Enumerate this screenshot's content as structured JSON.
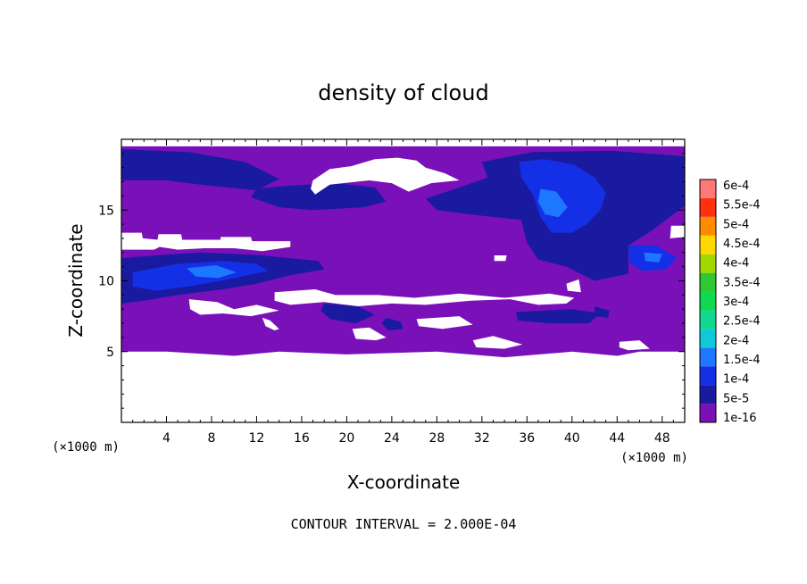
{
  "chart_data": {
    "type": "heatmap",
    "title": "density of cloud",
    "xlabel": "X-coordinate",
    "ylabel": "Z-coordinate",
    "x_unit": "(×1000 m)",
    "y_unit": "(×1000 m)",
    "xlim": [
      0,
      50
    ],
    "ylim": [
      0,
      20
    ],
    "xticks": [
      4,
      8,
      12,
      16,
      20,
      24,
      28,
      32,
      36,
      40,
      44,
      48
    ],
    "yticks": [
      5,
      10,
      15
    ],
    "footer": "CONTOUR INTERVAL = 2.000E-04",
    "colorbar": {
      "levels": [
        {
          "label": "1e-16",
          "value": 1e-16,
          "color": "#7a10b8"
        },
        {
          "label": "5e-5",
          "value": 5e-05,
          "color": "#1a1aa0"
        },
        {
          "label": "1e-4",
          "value": 0.0001,
          "color": "#1430e6"
        },
        {
          "label": "1.5e-4",
          "value": 0.00015,
          "color": "#1e78ff"
        },
        {
          "label": "2e-4",
          "value": 0.0002,
          "color": "#10c8d8"
        },
        {
          "label": "2.5e-4",
          "value": 0.00025,
          "color": "#10d890"
        },
        {
          "label": "3e-4",
          "value": 0.0003,
          "color": "#10d850"
        },
        {
          "label": "3.5e-4",
          "value": 0.00035,
          "color": "#30c830"
        },
        {
          "label": "4e-4",
          "value": 0.0004,
          "color": "#a0d800"
        },
        {
          "label": "4.5e-4",
          "value": 0.00045,
          "color": "#ffd800"
        },
        {
          "label": "5e-4",
          "value": 0.0005,
          "color": "#ff8c00"
        },
        {
          "label": "5.5e-4",
          "value": 0.00055,
          "color": "#ff3010"
        },
        {
          "label": "6e-4",
          "value": 0.0006,
          "color": "#ff7878"
        }
      ]
    },
    "regions": [
      {
        "level": 0,
        "points": [
          [
            0,
            19.5
          ],
          [
            50,
            19.5
          ],
          [
            50,
            5
          ],
          [
            46,
            5
          ],
          [
            44,
            4.7
          ],
          [
            40,
            5
          ],
          [
            34,
            4.6
          ],
          [
            28,
            5
          ],
          [
            20,
            4.8
          ],
          [
            14,
            5
          ],
          [
            10,
            4.7
          ],
          [
            4,
            5
          ],
          [
            0,
            5
          ]
        ]
      },
      {
        "level": 1,
        "points": [
          [
            0,
            19.3
          ],
          [
            6,
            19.1
          ],
          [
            11,
            18.4
          ],
          [
            14,
            17.2
          ],
          [
            12,
            16.4
          ],
          [
            8,
            16.7
          ],
          [
            4,
            17.1
          ],
          [
            0,
            17.1
          ]
        ]
      },
      {
        "level": 1,
        "points": [
          [
            11.5,
            15.9
          ],
          [
            14,
            15.2
          ],
          [
            17,
            15
          ],
          [
            21.5,
            15.2
          ],
          [
            23.5,
            15.6
          ],
          [
            22.5,
            16.6
          ],
          [
            19,
            16.9
          ],
          [
            14.5,
            16.7
          ],
          [
            12,
            16.5
          ]
        ]
      },
      {
        "level": 1,
        "points": [
          [
            32,
            18.4
          ],
          [
            36.5,
            19.1
          ],
          [
            43.5,
            19.2
          ],
          [
            50,
            18.8
          ],
          [
            50,
            15.3
          ],
          [
            47,
            13.5
          ],
          [
            45,
            12.5
          ],
          [
            45,
            10.5
          ],
          [
            42,
            10
          ],
          [
            39.5,
            11
          ],
          [
            37,
            11.5
          ],
          [
            36,
            12.7
          ],
          [
            35.5,
            14.3
          ],
          [
            32,
            14.6
          ],
          [
            28,
            15
          ],
          [
            27,
            15.8
          ],
          [
            30,
            16.6
          ],
          [
            32.5,
            17.3
          ]
        ]
      },
      {
        "level": 1,
        "points": [
          [
            0,
            11.6
          ],
          [
            3,
            11.8
          ],
          [
            7,
            12
          ],
          [
            10,
            11.9
          ],
          [
            12.5,
            11.8
          ],
          [
            15,
            11.6
          ],
          [
            17.5,
            11.4
          ],
          [
            18,
            10.8
          ],
          [
            15,
            10.4
          ],
          [
            12,
            9.8
          ],
          [
            9,
            9.4
          ],
          [
            5,
            9
          ],
          [
            2,
            8.6
          ],
          [
            0,
            8.4
          ]
        ]
      },
      {
        "level": 1,
        "points": [
          [
            18,
            8.4
          ],
          [
            21,
            8.2
          ],
          [
            22.5,
            7.6
          ],
          [
            20.8,
            7
          ],
          [
            18.5,
            7.3
          ],
          [
            17.7,
            7.9
          ]
        ]
      },
      {
        "level": 1,
        "points": [
          [
            23.5,
            7.4
          ],
          [
            24.8,
            7.1
          ],
          [
            25,
            6.6
          ],
          [
            23.7,
            6.5
          ],
          [
            23.1,
            7
          ]
        ]
      },
      {
        "level": 1,
        "points": [
          [
            35,
            7.8
          ],
          [
            40,
            8
          ],
          [
            42.5,
            7.7
          ],
          [
            41.5,
            7
          ],
          [
            38,
            7
          ],
          [
            35.2,
            7.2
          ]
        ]
      },
      {
        "level": 1,
        "points": [
          [
            42,
            8.2
          ],
          [
            43.3,
            7.9
          ],
          [
            43.2,
            7.4
          ],
          [
            42,
            7.5
          ]
        ]
      },
      {
        "level": 2,
        "points": [
          [
            35.3,
            18.4
          ],
          [
            37.5,
            18.6
          ],
          [
            40.2,
            18.2
          ],
          [
            42,
            17.3
          ],
          [
            43,
            16.2
          ],
          [
            42.5,
            15
          ],
          [
            41.3,
            14
          ],
          [
            40,
            13.4
          ],
          [
            38.2,
            13.4
          ],
          [
            37.2,
            14.5
          ],
          [
            36.6,
            16
          ],
          [
            35.5,
            17.3
          ]
        ]
      },
      {
        "level": 2,
        "points": [
          [
            1,
            10.6
          ],
          [
            5,
            11.2
          ],
          [
            9,
            11.4
          ],
          [
            12,
            11.2
          ],
          [
            13,
            10.7
          ],
          [
            9.5,
            10.1
          ],
          [
            6,
            9.6
          ],
          [
            3,
            9.3
          ],
          [
            1,
            9.6
          ]
        ]
      },
      {
        "level": 2,
        "points": [
          [
            45,
            12.5
          ],
          [
            47.5,
            12.5
          ],
          [
            49.3,
            11.6
          ],
          [
            48.3,
            10.8
          ],
          [
            46.2,
            10.7
          ],
          [
            45.1,
            11.3
          ]
        ]
      },
      {
        "level": 3,
        "points": [
          [
            37.2,
            16.5
          ],
          [
            38.6,
            16.3
          ],
          [
            39.6,
            15.2
          ],
          [
            38.8,
            14.5
          ],
          [
            37.6,
            14.7
          ],
          [
            37,
            15.6
          ]
        ]
      },
      {
        "level": 3,
        "points": [
          [
            5.8,
            10.9
          ],
          [
            8.4,
            11.1
          ],
          [
            10.2,
            10.6
          ],
          [
            8.6,
            10.2
          ],
          [
            6.6,
            10.3
          ]
        ]
      },
      {
        "level": 3,
        "points": [
          [
            46.4,
            12
          ],
          [
            48,
            11.9
          ],
          [
            47.7,
            11.3
          ],
          [
            46.5,
            11.4
          ]
        ]
      }
    ],
    "blanks": [
      {
        "points": [
          [
            17,
            17.1
          ],
          [
            18.5,
            17.9
          ],
          [
            20.4,
            18.1
          ],
          [
            22.5,
            18.6
          ],
          [
            24.5,
            18.7
          ],
          [
            26.2,
            18.5
          ],
          [
            27,
            18
          ],
          [
            28.7,
            17.6
          ],
          [
            30,
            17.1
          ],
          [
            27.5,
            16.9
          ],
          [
            25.5,
            16.3
          ],
          [
            24,
            16.9
          ],
          [
            22,
            17.1
          ],
          [
            18.5,
            16.8
          ],
          [
            17.2,
            16.1
          ],
          [
            16.8,
            16.5
          ]
        ]
      },
      {
        "points": [
          [
            0,
            13.4
          ],
          [
            1.8,
            13.4
          ],
          [
            1.9,
            13
          ],
          [
            3.2,
            12.9
          ],
          [
            3.3,
            13.3
          ],
          [
            5.3,
            13.3
          ],
          [
            5.4,
            12.9
          ],
          [
            8.8,
            12.9
          ],
          [
            8.8,
            13.1
          ],
          [
            11.5,
            13.1
          ],
          [
            11.6,
            12.8
          ],
          [
            15,
            12.8
          ],
          [
            15,
            12.4
          ],
          [
            12.5,
            12.1
          ],
          [
            10,
            12.3
          ],
          [
            7.4,
            12.3
          ],
          [
            5,
            12.2
          ],
          [
            3.4,
            12.4
          ],
          [
            2.9,
            12.2
          ],
          [
            0,
            12.2
          ]
        ]
      },
      {
        "points": [
          [
            13.6,
            9.2
          ],
          [
            17.2,
            9.4
          ],
          [
            19,
            9
          ],
          [
            22.8,
            9
          ],
          [
            26,
            8.8
          ],
          [
            30,
            9.1
          ],
          [
            34,
            8.8
          ],
          [
            38,
            9.1
          ],
          [
            40.2,
            8.8
          ],
          [
            39.5,
            8.4
          ],
          [
            37,
            8.3
          ],
          [
            34.5,
            8.7
          ],
          [
            31,
            8.6
          ],
          [
            27,
            8.3
          ],
          [
            24,
            8.4
          ],
          [
            21,
            8.2
          ],
          [
            18,
            8.5
          ],
          [
            15,
            8.3
          ],
          [
            13.6,
            8.6
          ]
        ]
      },
      {
        "points": [
          [
            6,
            8.7
          ],
          [
            8.5,
            8.5
          ],
          [
            10,
            8
          ],
          [
            12,
            8.3
          ],
          [
            14,
            7.9
          ],
          [
            11.5,
            7.5
          ],
          [
            9,
            7.7
          ],
          [
            7,
            7.6
          ],
          [
            6.1,
            8
          ]
        ]
      },
      {
        "points": [
          [
            12.5,
            7.4
          ],
          [
            13.2,
            7.2
          ],
          [
            14,
            6.6
          ],
          [
            13.6,
            6.5
          ],
          [
            12.8,
            6.8
          ]
        ]
      },
      {
        "points": [
          [
            20.5,
            6.6
          ],
          [
            22,
            6.7
          ],
          [
            23.5,
            6
          ],
          [
            22.6,
            5.8
          ],
          [
            20.8,
            5.9
          ]
        ]
      },
      {
        "points": [
          [
            26.2,
            7.3
          ],
          [
            30,
            7.5
          ],
          [
            31.2,
            6.9
          ],
          [
            28.5,
            6.6
          ],
          [
            26.4,
            6.8
          ]
        ]
      },
      {
        "points": [
          [
            31.2,
            5.8
          ],
          [
            33,
            6.1
          ],
          [
            35.6,
            5.5
          ],
          [
            34,
            5.2
          ],
          [
            31.5,
            5.3
          ]
        ]
      },
      {
        "points": [
          [
            44.2,
            5.7
          ],
          [
            46,
            5.8
          ],
          [
            46.9,
            5.2
          ],
          [
            45,
            5.1
          ],
          [
            44.2,
            5.3
          ]
        ]
      },
      {
        "points": [
          [
            48.8,
            13.9
          ],
          [
            50,
            13.9
          ],
          [
            50,
            13.1
          ],
          [
            48.7,
            13
          ]
        ]
      },
      {
        "points": [
          [
            33.1,
            11.8
          ],
          [
            34.2,
            11.8
          ],
          [
            34.1,
            11.4
          ],
          [
            33.1,
            11.4
          ]
        ]
      },
      {
        "points": [
          [
            39.5,
            9.8
          ],
          [
            40.6,
            10.1
          ],
          [
            40.8,
            9.2
          ],
          [
            39.6,
            9.3
          ]
        ]
      }
    ]
  }
}
